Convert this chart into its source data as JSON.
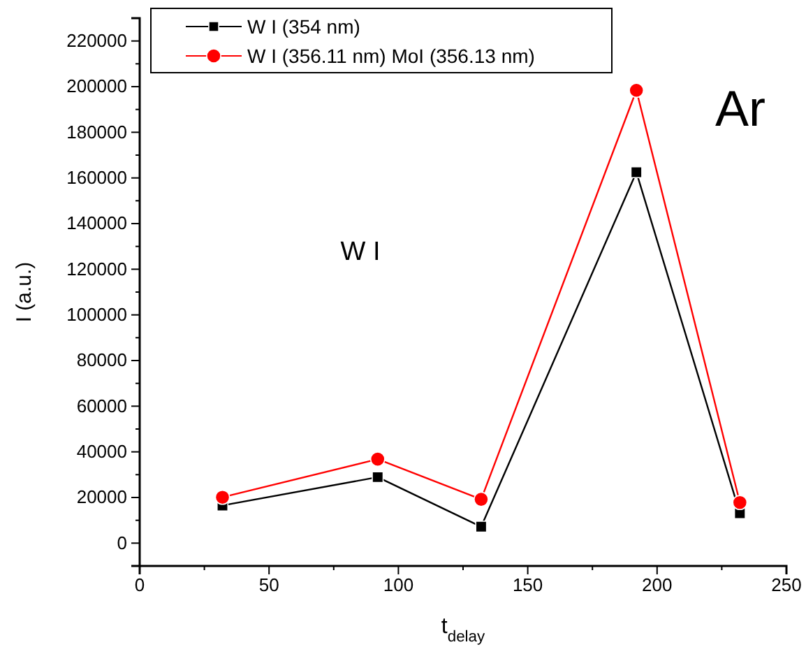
{
  "chart_data": {
    "type": "line",
    "xlabel": "t$_{delay}$",
    "ylabel": "I (a.u.)",
    "x": [
      32,
      92,
      132,
      192,
      232
    ],
    "series": [
      {
        "name": "W I (354 nm)",
        "color": "#000000",
        "marker": "square",
        "values": [
          16500,
          28900,
          7200,
          162500,
          13100
        ]
      },
      {
        "name": "W I (356.11 nm) MoI (356.13 nm)",
        "color": "#ff0000",
        "marker": "circle",
        "values": [
          20100,
          36800,
          19200,
          198400,
          17800
        ]
      }
    ],
    "xlim": [
      0,
      250
    ],
    "xticks": [
      0,
      50,
      100,
      150,
      200,
      250
    ],
    "ylim": [
      -10000,
      230000
    ],
    "yticks": [
      0,
      20000,
      40000,
      60000,
      80000,
      100000,
      120000,
      140000,
      160000,
      180000,
      200000,
      220000
    ],
    "legend": "top left",
    "grid": false,
    "line_style": "solid",
    "annotations": [
      "Ar",
      "W I"
    ]
  }
}
